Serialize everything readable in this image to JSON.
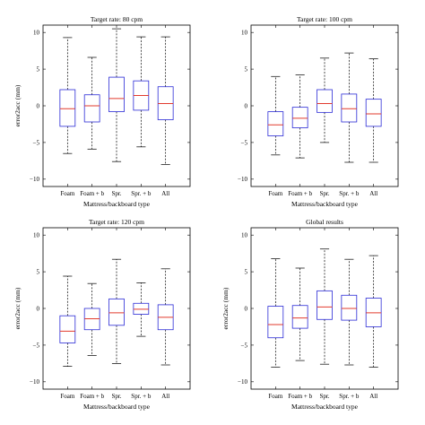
{
  "chart_data": [
    {
      "type": "box",
      "title": "Target rate: 80 cpm",
      "xlabel": "Mattress/backboard type",
      "ylabel": "error2acc (mm)",
      "ylim": [
        -11,
        11
      ],
      "yticks": [
        -10,
        -5,
        0,
        5,
        10
      ],
      "categories": [
        "Foam",
        "Foam + b",
        "Spr.",
        "Spr. + b",
        "All"
      ],
      "boxes": [
        {
          "min": -6.5,
          "q1": -2.8,
          "median": -0.4,
          "q3": 2.2,
          "max": 9.3
        },
        {
          "min": -5.9,
          "q1": -2.2,
          "median": 0.0,
          "q3": 1.5,
          "max": 6.6
        },
        {
          "min": -7.6,
          "q1": -0.8,
          "median": 1.0,
          "q3": 3.9,
          "max": 10.5
        },
        {
          "min": -5.6,
          "q1": -0.6,
          "median": 1.4,
          "q3": 3.4,
          "max": 9.4
        },
        {
          "min": -8.0,
          "q1": -1.9,
          "median": 0.3,
          "q3": 2.6,
          "max": 9.4
        }
      ]
    },
    {
      "type": "box",
      "title": "Target rate: 100 cpm",
      "xlabel": "Mattress/backboard type",
      "ylabel": "",
      "ylim": [
        -11,
        11
      ],
      "yticks": [
        -10,
        -5,
        0,
        5,
        10
      ],
      "categories": [
        "Foam",
        "Foam + b",
        "Spr.",
        "Spr. + b",
        "All"
      ],
      "boxes": [
        {
          "min": -6.7,
          "q1": -4.1,
          "median": -2.6,
          "q3": -0.8,
          "max": 4.0
        },
        {
          "min": -7.1,
          "q1": -3.0,
          "median": -1.7,
          "q3": -0.2,
          "max": 4.2
        },
        {
          "min": -5.0,
          "q1": -0.9,
          "median": 0.3,
          "q3": 2.2,
          "max": 6.5
        },
        {
          "min": -7.7,
          "q1": -2.2,
          "median": -0.4,
          "q3": 1.6,
          "max": 7.2
        },
        {
          "min": -7.7,
          "q1": -2.8,
          "median": -1.1,
          "q3": 0.9,
          "max": 6.4
        }
      ]
    },
    {
      "type": "box",
      "title": "Target rate: 120 cpm",
      "xlabel": "Mattress/backboard type",
      "ylabel": "error2acc (mm)",
      "ylim": [
        -11,
        11
      ],
      "yticks": [
        -10,
        -5,
        0,
        5,
        10
      ],
      "categories": [
        "Foam",
        "Foam + b",
        "Spr.",
        "Spr. + b",
        "All"
      ],
      "boxes": [
        {
          "min": -7.9,
          "q1": -4.7,
          "median": -3.1,
          "q3": -1.0,
          "max": 4.4
        },
        {
          "min": -6.4,
          "q1": -2.9,
          "median": -1.4,
          "q3": 0.0,
          "max": 3.4
        },
        {
          "min": -7.5,
          "q1": -2.3,
          "median": -0.6,
          "q3": 1.3,
          "max": 6.7
        },
        {
          "min": -3.8,
          "q1": -0.8,
          "median": -0.1,
          "q3": 0.7,
          "max": 3.5
        },
        {
          "min": -7.7,
          "q1": -2.9,
          "median": -1.2,
          "q3": 0.5,
          "max": 5.4
        }
      ]
    },
    {
      "type": "box",
      "title": "Global results",
      "xlabel": "Mattress/backboard type",
      "ylabel": "error2acc (mm)",
      "ylim": [
        -11,
        11
      ],
      "yticks": [
        -10,
        -5,
        0,
        5,
        10
      ],
      "categories": [
        "Foam",
        "Foam + b",
        "Spr.",
        "Spr. + b",
        "All"
      ],
      "boxes": [
        {
          "min": -8.0,
          "q1": -4.0,
          "median": -2.2,
          "q3": 0.3,
          "max": 6.8
        },
        {
          "min": -7.1,
          "q1": -2.7,
          "median": -1.3,
          "q3": 0.4,
          "max": 5.5
        },
        {
          "min": -7.6,
          "q1": -1.5,
          "median": 0.2,
          "q3": 2.4,
          "max": 8.1
        },
        {
          "min": -7.7,
          "q1": -1.6,
          "median": 0.0,
          "q3": 1.8,
          "max": 6.7
        },
        {
          "min": -8.0,
          "q1": -2.5,
          "median": -0.6,
          "q3": 1.4,
          "max": 7.2
        }
      ]
    }
  ]
}
